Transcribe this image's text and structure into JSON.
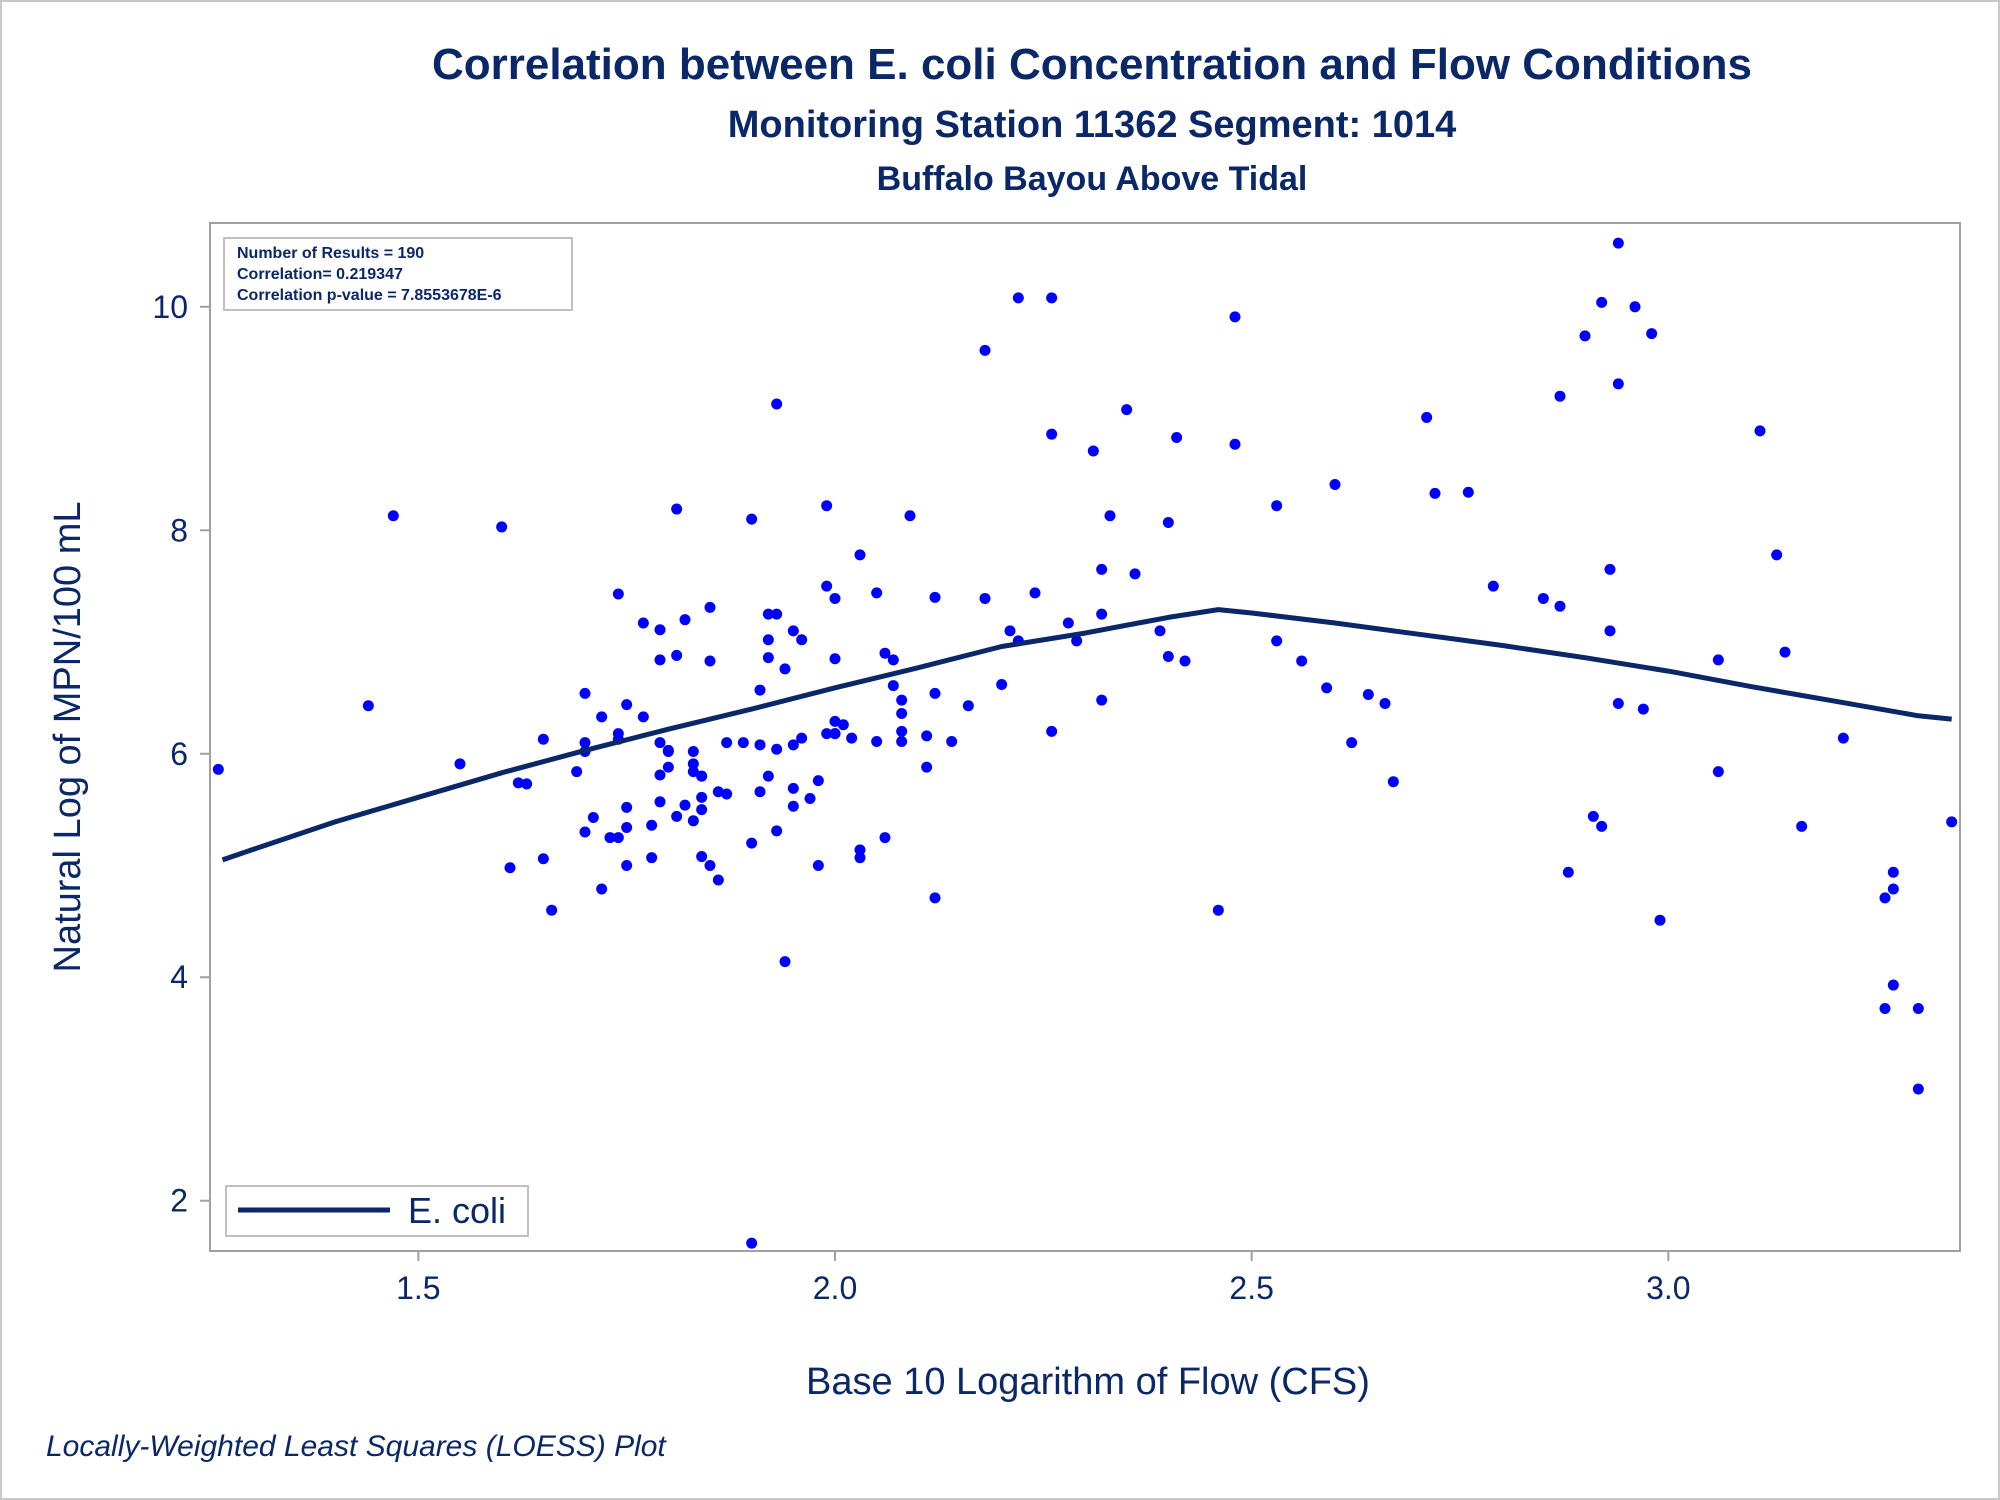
{
  "header": {
    "title": "Correlation between E. coli Concentration and Flow Conditions",
    "subtitle": "Monitoring Station 11362 Segment: 1014",
    "subtitle2": "Buffalo Bayou Above Tidal"
  },
  "stats": {
    "line1": "Number of Results = 190",
    "line2": "Correlation= 0.219347",
    "line3": "Correlation p-value = 7.8553678E-6"
  },
  "footnote": "Locally-Weighted Least Squares (LOESS) Plot",
  "colors": {
    "points": "#0000ff",
    "line": "#0a2768",
    "text": "#0a2768",
    "frame": "#a0a0a0"
  },
  "chart_data": {
    "type": "scatter",
    "xlabel": "Base 10 Logarithm of Flow (CFS)",
    "ylabel": "Natural Log of MPN/100 mL",
    "xlim": [
      1.25,
      3.35
    ],
    "ylim": [
      1.55,
      10.75
    ],
    "xticks": [
      1.5,
      2.0,
      2.5,
      3.0
    ],
    "xtick_labels": [
      "1.5",
      "2.0",
      "2.5",
      "3.0"
    ],
    "yticks": [
      2,
      4,
      6,
      8,
      10
    ],
    "ytick_labels": [
      "2",
      "4",
      "6",
      "8",
      "10"
    ],
    "grid": false,
    "legend_position": "bottom-left",
    "series": [
      {
        "name": "",
        "kind": "scatter",
        "points": [
          [
            1.26,
            5.86
          ],
          [
            1.44,
            6.43
          ],
          [
            1.47,
            8.13
          ],
          [
            1.55,
            5.91
          ],
          [
            1.6,
            8.03
          ],
          [
            1.61,
            4.98
          ],
          [
            1.62,
            5.74
          ],
          [
            1.63,
            5.73
          ],
          [
            1.65,
            6.13
          ],
          [
            1.65,
            5.06
          ],
          [
            1.66,
            4.6
          ],
          [
            1.69,
            5.84
          ],
          [
            1.7,
            6.54
          ],
          [
            1.7,
            6.1
          ],
          [
            1.7,
            6.02
          ],
          [
            1.7,
            5.3
          ],
          [
            1.71,
            5.43
          ],
          [
            1.72,
            4.79
          ],
          [
            1.72,
            6.33
          ],
          [
            1.73,
            5.25
          ],
          [
            1.74,
            6.18
          ],
          [
            1.74,
            6.13
          ],
          [
            1.74,
            7.43
          ],
          [
            1.74,
            5.25
          ],
          [
            1.75,
            6.44
          ],
          [
            1.75,
            5.0
          ],
          [
            1.75,
            5.52
          ],
          [
            1.75,
            5.34
          ],
          [
            1.77,
            7.17
          ],
          [
            1.77,
            6.33
          ],
          [
            1.78,
            5.36
          ],
          [
            1.78,
            5.07
          ],
          [
            1.79,
            6.1
          ],
          [
            1.79,
            5.57
          ],
          [
            1.79,
            5.81
          ],
          [
            1.79,
            6.84
          ],
          [
            1.79,
            7.11
          ],
          [
            1.8,
            6.03
          ],
          [
            1.8,
            5.88
          ],
          [
            1.8,
            6.02
          ],
          [
            1.81,
            5.44
          ],
          [
            1.81,
            6.88
          ],
          [
            1.81,
            8.19
          ],
          [
            1.82,
            5.54
          ],
          [
            1.82,
            7.2
          ],
          [
            1.83,
            5.91
          ],
          [
            1.83,
            6.02
          ],
          [
            1.83,
            5.4
          ],
          [
            1.83,
            5.84
          ],
          [
            1.84,
            5.5
          ],
          [
            1.84,
            5.8
          ],
          [
            1.84,
            5.8
          ],
          [
            1.84,
            5.08
          ],
          [
            1.84,
            5.61
          ],
          [
            1.85,
            7.31
          ],
          [
            1.85,
            5.0
          ],
          [
            1.85,
            6.83
          ],
          [
            1.86,
            4.87
          ],
          [
            1.86,
            5.66
          ],
          [
            1.87,
            5.64
          ],
          [
            1.87,
            6.1
          ],
          [
            1.89,
            6.1
          ],
          [
            1.9,
            8.1
          ],
          [
            1.9,
            5.2
          ],
          [
            1.9,
            1.62
          ],
          [
            1.91,
            6.57
          ],
          [
            1.91,
            5.66
          ],
          [
            1.91,
            6.08
          ],
          [
            1.92,
            7.25
          ],
          [
            1.92,
            6.86
          ],
          [
            1.92,
            7.02
          ],
          [
            1.92,
            5.8
          ],
          [
            1.93,
            7.25
          ],
          [
            1.93,
            6.04
          ],
          [
            1.93,
            5.31
          ],
          [
            1.93,
            9.13
          ],
          [
            1.94,
            6.76
          ],
          [
            1.94,
            4.14
          ],
          [
            1.95,
            7.1
          ],
          [
            1.95,
            6.08
          ],
          [
            1.95,
            5.69
          ],
          [
            1.95,
            5.53
          ],
          [
            1.96,
            7.02
          ],
          [
            1.96,
            6.14
          ],
          [
            1.97,
            5.6
          ],
          [
            1.98,
            5.76
          ],
          [
            1.98,
            5.0
          ],
          [
            1.99,
            8.22
          ],
          [
            1.99,
            7.5
          ],
          [
            1.99,
            6.18
          ],
          [
            2.0,
            7.39
          ],
          [
            2.0,
            6.85
          ],
          [
            2.0,
            6.18
          ],
          [
            2.0,
            6.18
          ],
          [
            2.0,
            6.29
          ],
          [
            2.01,
            6.26
          ],
          [
            2.02,
            6.14
          ],
          [
            2.03,
            5.07
          ],
          [
            2.03,
            5.14
          ],
          [
            2.03,
            7.78
          ],
          [
            2.05,
            7.44
          ],
          [
            2.05,
            6.11
          ],
          [
            2.06,
            5.25
          ],
          [
            2.06,
            6.9
          ],
          [
            2.07,
            6.61
          ],
          [
            2.07,
            6.84
          ],
          [
            2.08,
            6.48
          ],
          [
            2.08,
            6.2
          ],
          [
            2.08,
            6.36
          ],
          [
            2.08,
            6.11
          ],
          [
            2.09,
            8.13
          ],
          [
            2.11,
            6.16
          ],
          [
            2.11,
            5.88
          ],
          [
            2.12,
            7.4
          ],
          [
            2.12,
            6.54
          ],
          [
            2.12,
            4.71
          ],
          [
            2.14,
            6.11
          ],
          [
            2.16,
            6.43
          ],
          [
            2.18,
            9.61
          ],
          [
            2.18,
            7.39
          ],
          [
            2.2,
            6.62
          ],
          [
            2.21,
            7.1
          ],
          [
            2.22,
            7.01
          ],
          [
            2.22,
            10.08
          ],
          [
            2.24,
            7.44
          ],
          [
            2.26,
            6.2
          ],
          [
            2.26,
            10.08
          ],
          [
            2.26,
            8.86
          ],
          [
            2.28,
            7.17
          ],
          [
            2.29,
            7.01
          ],
          [
            2.31,
            8.71
          ],
          [
            2.32,
            7.25
          ],
          [
            2.32,
            6.48
          ],
          [
            2.32,
            7.65
          ],
          [
            2.33,
            8.13
          ],
          [
            2.35,
            9.08
          ],
          [
            2.36,
            7.61
          ],
          [
            2.39,
            7.1
          ],
          [
            2.4,
            6.87
          ],
          [
            2.4,
            8.07
          ],
          [
            2.41,
            8.83
          ],
          [
            2.42,
            6.83
          ],
          [
            2.46,
            4.6
          ],
          [
            2.48,
            9.91
          ],
          [
            2.48,
            8.77
          ],
          [
            2.53,
            8.22
          ],
          [
            2.53,
            7.01
          ],
          [
            2.56,
            6.83
          ],
          [
            2.59,
            6.59
          ],
          [
            2.6,
            8.41
          ],
          [
            2.62,
            6.1
          ],
          [
            2.64,
            6.53
          ],
          [
            2.66,
            6.45
          ],
          [
            2.67,
            5.75
          ],
          [
            2.71,
            9.01
          ],
          [
            2.72,
            8.33
          ],
          [
            2.76,
            8.34
          ],
          [
            2.79,
            7.5
          ],
          [
            2.85,
            7.39
          ],
          [
            2.87,
            7.32
          ],
          [
            2.87,
            9.2
          ],
          [
            2.88,
            4.94
          ],
          [
            2.9,
            9.74
          ],
          [
            2.91,
            5.44
          ],
          [
            2.92,
            10.04
          ],
          [
            2.92,
            5.35
          ],
          [
            2.93,
            7.65
          ],
          [
            2.93,
            7.1
          ],
          [
            2.94,
            9.31
          ],
          [
            2.94,
            10.57
          ],
          [
            2.94,
            6.45
          ],
          [
            2.96,
            10.0
          ],
          [
            2.97,
            6.4
          ],
          [
            2.98,
            9.76
          ],
          [
            2.99,
            4.51
          ],
          [
            3.06,
            5.84
          ],
          [
            3.06,
            6.84
          ],
          [
            3.11,
            8.89
          ],
          [
            3.13,
            7.78
          ],
          [
            3.14,
            6.91
          ],
          [
            3.16,
            5.35
          ],
          [
            3.21,
            6.14
          ],
          [
            3.26,
            3.72
          ],
          [
            3.26,
            4.71
          ],
          [
            3.27,
            4.79
          ],
          [
            3.27,
            4.94
          ],
          [
            3.27,
            3.93
          ],
          [
            3.3,
            3.72
          ],
          [
            3.3,
            3.0
          ],
          [
            3.34,
            5.39
          ]
        ]
      },
      {
        "name": "E. coli",
        "kind": "line",
        "points": [
          [
            1.265,
            5.05
          ],
          [
            1.3,
            5.14
          ],
          [
            1.4,
            5.39
          ],
          [
            1.5,
            5.61
          ],
          [
            1.6,
            5.83
          ],
          [
            1.7,
            6.03
          ],
          [
            1.8,
            6.22
          ],
          [
            1.9,
            6.4
          ],
          [
            2.0,
            6.59
          ],
          [
            2.1,
            6.77
          ],
          [
            2.2,
            6.96
          ],
          [
            2.3,
            7.08
          ],
          [
            2.4,
            7.22
          ],
          [
            2.46,
            7.29
          ],
          [
            2.5,
            7.26
          ],
          [
            2.6,
            7.17
          ],
          [
            2.7,
            7.07
          ],
          [
            2.8,
            6.97
          ],
          [
            2.9,
            6.86
          ],
          [
            3.0,
            6.74
          ],
          [
            3.1,
            6.6
          ],
          [
            3.2,
            6.47
          ],
          [
            3.3,
            6.34
          ],
          [
            3.34,
            6.31
          ]
        ]
      }
    ]
  }
}
